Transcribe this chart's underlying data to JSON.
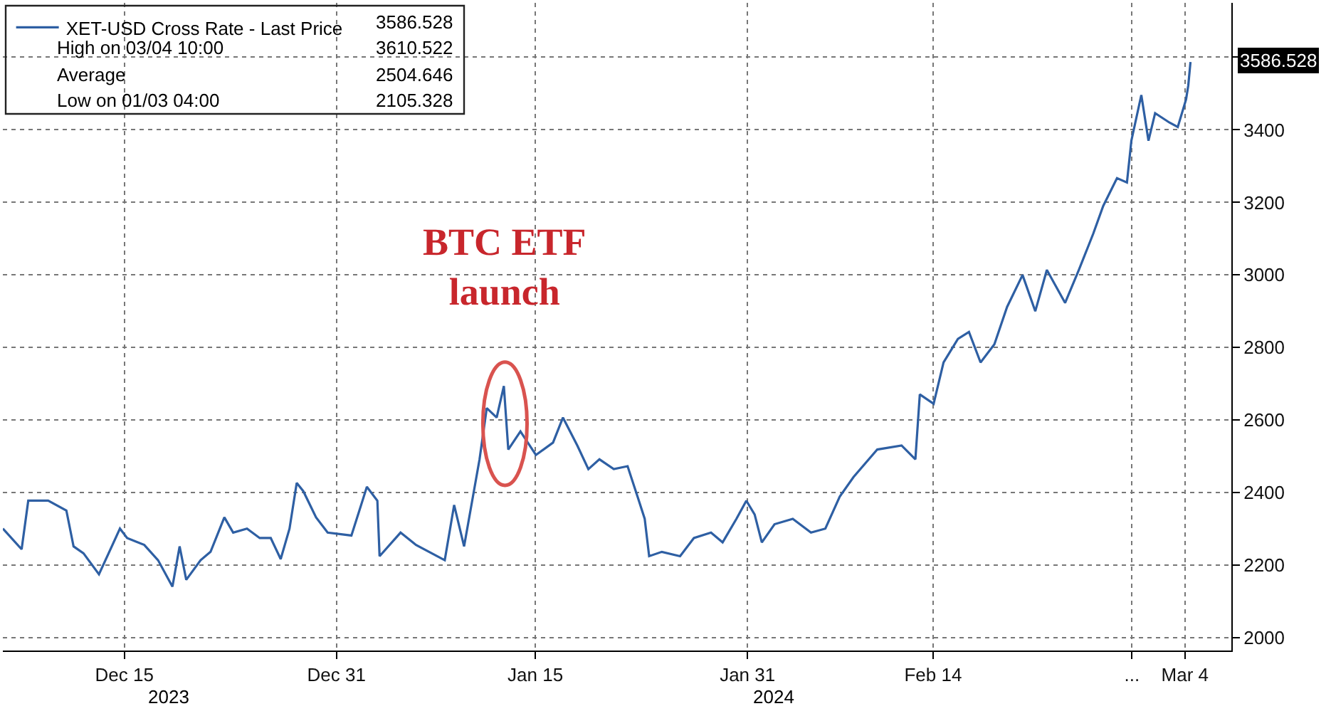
{
  "chart_data": {
    "type": "line",
    "series": [
      {
        "name": "XET-USD Cross Rate - Last Price",
        "color": "#2e5fa3",
        "x": [
          "2023-12-05T20:00",
          "2023-12-07T06:00",
          "2023-12-07T18:00",
          "2023-12-09T06:00",
          "2023-12-10T15:00",
          "2023-12-11T04:00",
          "2023-12-11T22:00",
          "2023-12-13T02:00",
          "2023-12-14T16:00",
          "2023-12-15T05:00",
          "2023-12-16T12:00",
          "2023-12-17T13:00",
          "2023-12-18T15:00",
          "2023-12-19T04:00",
          "2023-12-19T16:00",
          "2023-12-20T18:00",
          "2023-12-21T12:00",
          "2023-12-22T13:00",
          "2023-12-23T05:00",
          "2023-12-24T06:00",
          "2023-12-25T05:00",
          "2023-12-26T01:00",
          "2023-12-26T19:00",
          "2023-12-27T11:00",
          "2023-12-28T00:00",
          "2023-12-28T12:00",
          "2023-12-29T11:00",
          "2023-12-30T08:00",
          "2024-01-01T03:00",
          "2024-01-02T07:00",
          "2024-01-03T02:00",
          "2024-01-03T06:00",
          "2024-01-04T20:00",
          "2024-01-06T00:00",
          "2024-01-08T04:00",
          "2024-01-08T21:00",
          "2024-01-09T15:00",
          "2024-01-10T07:00",
          "2024-01-10T19:00",
          "2024-01-11T08:00",
          "2024-01-12T02:00",
          "2024-01-12T15:00",
          "2024-01-12T23:00",
          "2024-01-13T21:00",
          "2024-01-15T01:00",
          "2024-01-16T08:00",
          "2024-01-17T02:00",
          "2024-01-18T04:00",
          "2024-01-19T00:00",
          "2024-01-19T20:00",
          "2024-01-20T22:00",
          "2024-01-21T23:00",
          "2024-01-22T17:00",
          "2024-01-23T06:00",
          "2024-01-23T14:00",
          "2024-01-24T13:00",
          "2024-01-25T22:00",
          "2024-01-26T23:00",
          "2024-01-28T06:00",
          "2024-01-29T03:00",
          "2024-01-30T04:00",
          "2024-01-30T22:00",
          "2024-01-31T13:00",
          "2024-02-01T02:00",
          "2024-02-02T01:00",
          "2024-02-03T10:00",
          "2024-02-04T19:00",
          "2024-02-05T21:00",
          "2024-02-06T23:00",
          "2024-02-08T00:00",
          "2024-02-09T19:00",
          "2024-02-11T15:00",
          "2024-02-12T16:00",
          "2024-02-13T00:00",
          "2024-02-14T01:00",
          "2024-02-14T19:00",
          "2024-02-15T21:00",
          "2024-02-16T17:00",
          "2024-02-17T14:00",
          "2024-02-18T15:00",
          "2024-02-19T14:00",
          "2024-02-20T18:00",
          "2024-02-21T17:00",
          "2024-02-22T14:00",
          "2024-02-23T23:00",
          "2024-02-25T00:00",
          "2024-02-26T02:00",
          "2024-02-26T20:00",
          "2024-02-27T21:00",
          "2024-02-28T15:00",
          "2024-02-28T23:00",
          "2024-02-29T17:00",
          "2024-03-01T06:00",
          "2024-03-01T18:00",
          "2024-03-02T20:00",
          "2024-03-03T11:00",
          "2024-03-04T02:00",
          "2024-03-04T06:00",
          "2024-03-04T10:00"
        ],
        "values": [
          2301,
          2244,
          2378,
          2378,
          2351,
          2252,
          2233,
          2175,
          2301,
          2275,
          2256,
          2214,
          2141,
          2252,
          2160,
          2214,
          2237,
          2332,
          2290,
          2301,
          2275,
          2275,
          2217,
          2301,
          2427,
          2404,
          2332,
          2290,
          2282,
          2416,
          2378,
          2225,
          2290,
          2256,
          2214,
          2366,
          2252,
          2389,
          2492,
          2633,
          2607,
          2694,
          2519,
          2569,
          2504,
          2538,
          2607,
          2530,
          2465,
          2492,
          2465,
          2473,
          2389,
          2328,
          2225,
          2237,
          2225,
          2275,
          2290,
          2263,
          2328,
          2378,
          2340,
          2263,
          2313,
          2328,
          2290,
          2301,
          2389,
          2443,
          2519,
          2530,
          2492,
          2671,
          2645,
          2759,
          2824,
          2843,
          2759,
          2809,
          2912,
          3000,
          2900,
          3014,
          2923,
          3014,
          3114,
          3190,
          3267,
          3255,
          3370,
          3496,
          3370,
          3446,
          3420,
          3408,
          3484,
          3522,
          3587
        ]
      }
    ],
    "xlim": [
      "2023-12-05T20:00",
      "2024-03-07T12:00"
    ],
    "xticks": [
      {
        "value": "2023-12-15",
        "label": "Dec 15"
      },
      {
        "value": "2023-12-31",
        "label": "Dec 31"
      },
      {
        "value": "2024-01-15",
        "label": "Jan 15"
      },
      {
        "value": "2024-01-31",
        "label": "Jan 31"
      },
      {
        "value": "2024-02-14",
        "label": "Feb 14"
      },
      {
        "value": "2024-02-29",
        "label": "..."
      },
      {
        "value": "2024-03-04",
        "label": "Mar 4"
      }
    ],
    "ylim": [
      1965,
      3750
    ],
    "yticks": [
      2000,
      2200,
      2400,
      2600,
      2800,
      3000,
      3200,
      3400,
      {
        "value": 3600,
        "label": null
      }
    ],
    "grid": true,
    "legend": "top left",
    "marker": "none",
    "line_style": "solid",
    "annotations": [
      "2023",
      "2024",
      "3586.528",
      "High on 03/04 10:00",
      "3610.522",
      "Average",
      "2504.646",
      "Low on 01/03 04:00",
      "2105.328",
      {
        "text": "BTC ETF\nlaunch",
        "x": "2024-01-12T17:00",
        "y": 2590
      },
      "3586.528"
    ]
  }
}
